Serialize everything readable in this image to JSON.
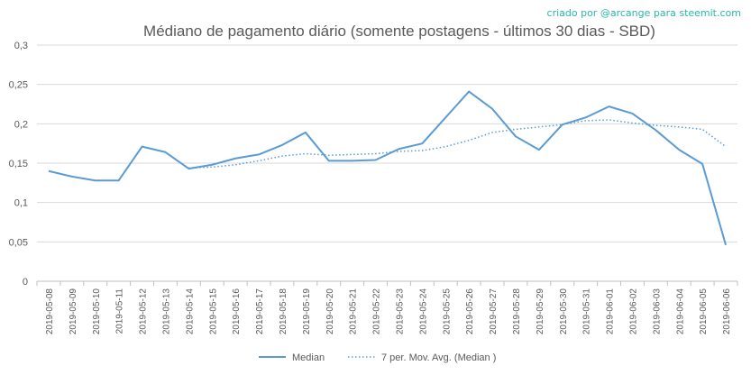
{
  "chart_data": {
    "type": "line",
    "title": "Médiano de pagamento diário (somente postagens - últimos 30 dias - SBD)",
    "credit": "criado por @arcange para steemit.com",
    "xlabel": "",
    "ylabel": "",
    "ylim": [
      0,
      0.3
    ],
    "yticks": [
      "0",
      "0,05",
      "0,1",
      "0,15",
      "0,2",
      "0,25",
      "0,3"
    ],
    "ytick_values": [
      0,
      0.05,
      0.1,
      0.15,
      0.2,
      0.25,
      0.3
    ],
    "grid": true,
    "legend_position": "bottom",
    "categories": [
      "2019-05-08",
      "2019-05-09",
      "2019-05-10",
      "2019-05-11",
      "2019-05-12",
      "2019-05-13",
      "2019-05-14",
      "2019-05-15",
      "2019-05-16",
      "2019-05-17",
      "2019-05-18",
      "2019-05-19",
      "2019-05-20",
      "2019-05-21",
      "2019-05-22",
      "2019-05-23",
      "2019-05-24",
      "2019-05-25",
      "2019-05-26",
      "2019-05-27",
      "2019-05-28",
      "2019-05-29",
      "2019-05-30",
      "2019-05-31",
      "2019-06-01",
      "2019-06-02",
      "2019-06-03",
      "2019-06-04",
      "2019-06-05",
      "2019-06-06"
    ],
    "series": [
      {
        "name": "Median",
        "style": "solid",
        "color": "#5b9bd5",
        "values": [
          0.14,
          0.133,
          0.128,
          0.128,
          0.171,
          0.164,
          0.143,
          0.148,
          0.156,
          0.161,
          0.173,
          0.189,
          0.153,
          0.153,
          0.154,
          0.168,
          0.175,
          0.208,
          0.241,
          0.219,
          0.184,
          0.167,
          0.199,
          0.208,
          0.222,
          0.213,
          0.192,
          0.167,
          0.149,
          0.046
        ]
      },
      {
        "name": "7 per. Mov. Avg. (Median )",
        "style": "dotted",
        "color": "#5b9bd5",
        "values": [
          null,
          null,
          null,
          null,
          null,
          null,
          0.144,
          0.145,
          0.148,
          0.153,
          0.159,
          0.162,
          0.16,
          0.161,
          0.162,
          0.165,
          0.166,
          0.171,
          0.179,
          0.189,
          0.193,
          0.196,
          0.199,
          0.204,
          0.205,
          0.201,
          0.198,
          0.196,
          0.193,
          0.171
        ]
      }
    ]
  }
}
